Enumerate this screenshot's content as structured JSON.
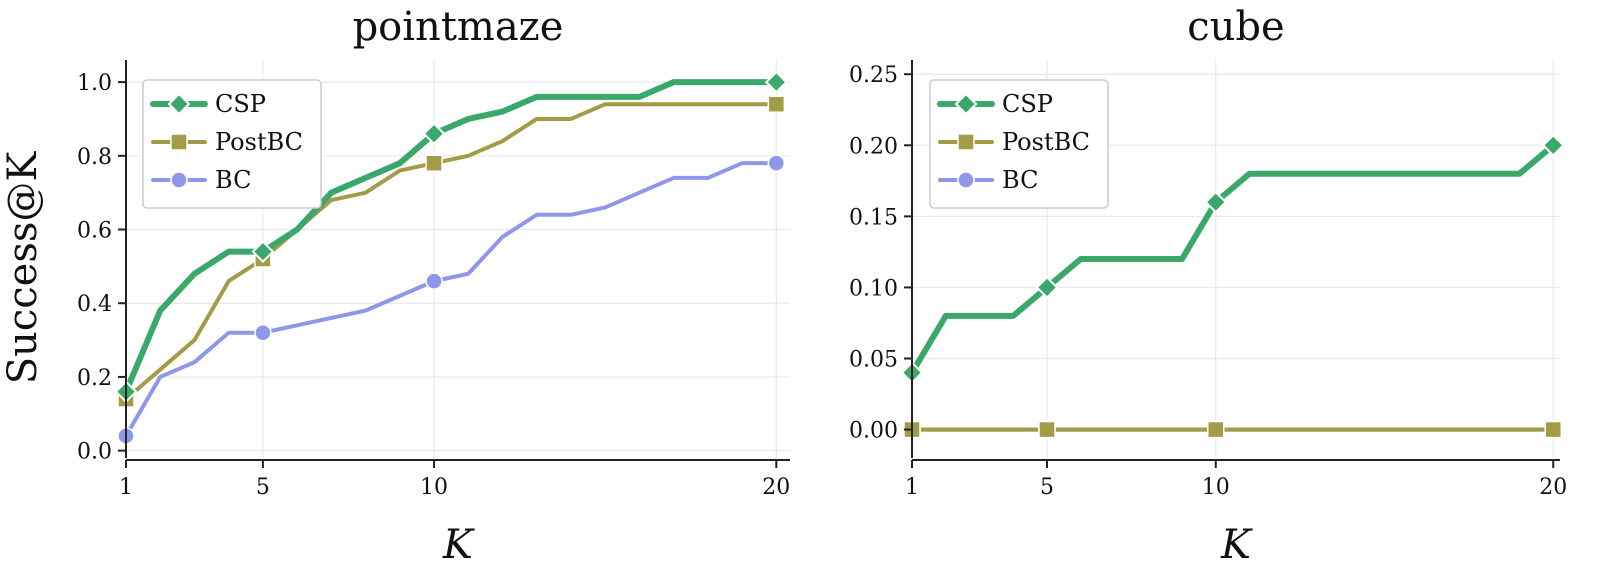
{
  "ylabel": "Success@K",
  "chart_data": [
    {
      "type": "line",
      "title": "pointmaze",
      "xlabel": "K",
      "ylabel": "Success@K",
      "xlim": [
        1,
        20.4
      ],
      "ylim": [
        -0.02,
        1.06
      ],
      "xticks": [
        1,
        5,
        10,
        20
      ],
      "xtick_labels": [
        "1",
        "5",
        "10",
        "20"
      ],
      "yticks": [
        0.0,
        0.2,
        0.4,
        0.6,
        0.8,
        1.0
      ],
      "ytick_labels": [
        "0.0",
        "0.2",
        "0.4",
        "0.6",
        "0.8",
        "1.0"
      ],
      "grid": true,
      "legend": "top-left",
      "series": [
        {
          "name": "CSP",
          "color": "#3aa86b",
          "marker": "diamond",
          "width": 6,
          "x": [
            1,
            2,
            3,
            4,
            5,
            6,
            7,
            8,
            9,
            10,
            11,
            12,
            13,
            14,
            15,
            16,
            17,
            18,
            19,
            20
          ],
          "y": [
            0.16,
            0.38,
            0.48,
            0.54,
            0.54,
            0.6,
            0.7,
            0.74,
            0.78,
            0.86,
            0.9,
            0.92,
            0.96,
            0.96,
            0.96,
            0.96,
            1.0,
            1.0,
            1.0,
            1.0
          ],
          "marker_x": [
            1,
            5,
            10,
            20
          ]
        },
        {
          "name": "PostBC",
          "color": "#a39b45",
          "marker": "square",
          "width": 4,
          "x": [
            1,
            2,
            3,
            4,
            5,
            6,
            7,
            8,
            9,
            10,
            11,
            12,
            13,
            14,
            15,
            16,
            17,
            18,
            19,
            20
          ],
          "y": [
            0.14,
            0.22,
            0.3,
            0.46,
            0.52,
            0.6,
            0.68,
            0.7,
            0.76,
            0.78,
            0.8,
            0.84,
            0.9,
            0.9,
            0.94,
            0.94,
            0.94,
            0.94,
            0.94,
            0.94
          ],
          "marker_x": [
            1,
            5,
            10,
            20
          ]
        },
        {
          "name": "BC",
          "color": "#8e98e8",
          "marker": "circle",
          "width": 4,
          "x": [
            1,
            2,
            3,
            4,
            5,
            6,
            7,
            8,
            9,
            10,
            11,
            12,
            13,
            14,
            15,
            16,
            17,
            18,
            19,
            20
          ],
          "y": [
            0.04,
            0.2,
            0.24,
            0.32,
            0.32,
            0.34,
            0.36,
            0.38,
            0.42,
            0.46,
            0.48,
            0.58,
            0.64,
            0.64,
            0.66,
            0.7,
            0.74,
            0.74,
            0.78,
            0.78
          ],
          "marker_x": [
            1,
            5,
            10,
            20
          ]
        }
      ]
    },
    {
      "type": "line",
      "title": "cube",
      "xlabel": "K",
      "ylabel": "",
      "xlim": [
        1,
        20.2
      ],
      "ylim": [
        -0.02,
        0.26
      ],
      "xticks": [
        1,
        5,
        10,
        20
      ],
      "xtick_labels": [
        "1",
        "5",
        "10",
        "20"
      ],
      "yticks": [
        0.0,
        0.05,
        0.1,
        0.15,
        0.2,
        0.25
      ],
      "ytick_labels": [
        "0.00",
        "0.05",
        "0.10",
        "0.15",
        "0.20",
        "0.25"
      ],
      "grid": true,
      "legend": "top-left",
      "series": [
        {
          "name": "CSP",
          "color": "#3aa86b",
          "marker": "diamond",
          "width": 6,
          "x": [
            1,
            2,
            3,
            4,
            5,
            6,
            7,
            8,
            9,
            10,
            11,
            12,
            13,
            14,
            15,
            16,
            17,
            18,
            19,
            20
          ],
          "y": [
            0.04,
            0.08,
            0.08,
            0.08,
            0.1,
            0.12,
            0.12,
            0.12,
            0.12,
            0.16,
            0.18,
            0.18,
            0.18,
            0.18,
            0.18,
            0.18,
            0.18,
            0.18,
            0.18,
            0.2
          ],
          "marker_x": [
            1,
            5,
            10,
            20
          ]
        },
        {
          "name": "PostBC",
          "color": "#a39b45",
          "marker": "square",
          "width": 4,
          "x": [
            1,
            2,
            3,
            4,
            5,
            6,
            7,
            8,
            9,
            10,
            11,
            12,
            13,
            14,
            15,
            16,
            17,
            18,
            19,
            20
          ],
          "y": [
            0,
            0,
            0,
            0,
            0,
            0,
            0,
            0,
            0,
            0,
            0,
            0,
            0,
            0,
            0,
            0,
            0,
            0,
            0,
            0
          ],
          "marker_x": [
            1,
            5,
            10,
            20
          ]
        },
        {
          "name": "BC",
          "color": "#8e98e8",
          "marker": "circle",
          "width": 4,
          "x": [
            1,
            2,
            3,
            4,
            5,
            6,
            7,
            8,
            9,
            10,
            11,
            12,
            13,
            14,
            15,
            16,
            17,
            18,
            19,
            20
          ],
          "y": [
            0,
            0,
            0,
            0,
            0,
            0,
            0,
            0,
            0,
            0,
            0,
            0,
            0,
            0,
            0,
            0,
            0,
            0,
            0,
            0
          ],
          "marker_x": [
            1,
            5,
            10,
            20
          ]
        }
      ]
    }
  ]
}
